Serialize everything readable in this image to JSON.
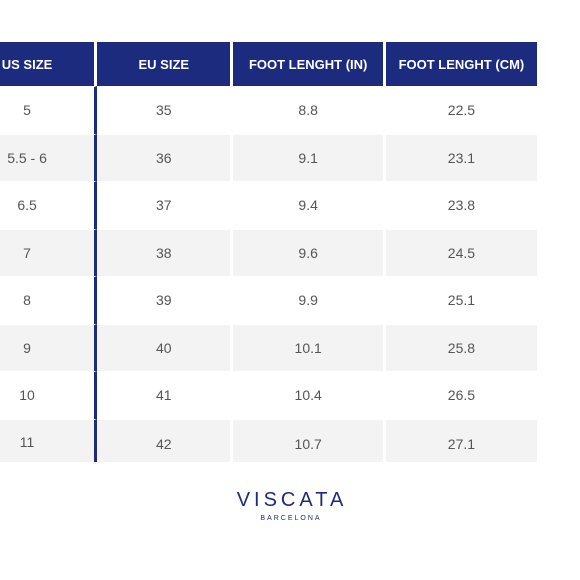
{
  "table": {
    "headers": [
      "US SIZE",
      "EU SIZE",
      "FOOT LENGHT (IN)",
      "FOOT LENGHT (CM)"
    ],
    "rows": [
      [
        "5",
        "35",
        "8.8",
        "22.5"
      ],
      [
        "5.5 - 6",
        "36",
        "9.1",
        "23.1"
      ],
      [
        "6.5",
        "37",
        "9.4",
        "23.8"
      ],
      [
        "7",
        "38",
        "9.6",
        "24.5"
      ],
      [
        "8",
        "39",
        "9.9",
        "25.1"
      ],
      [
        "9",
        "40",
        "10.1",
        "25.8"
      ],
      [
        "10",
        "41",
        "10.4",
        "26.5"
      ],
      [
        "11",
        "42",
        "10.7",
        "27.1"
      ]
    ]
  },
  "brand": {
    "name": "VISCATA",
    "subtitle": "BARCELONA"
  },
  "colors": {
    "header_background": "#1c2b7d",
    "header_text": "#ffffff",
    "body_text": "#555555",
    "stripe": "#f3f3f3"
  }
}
